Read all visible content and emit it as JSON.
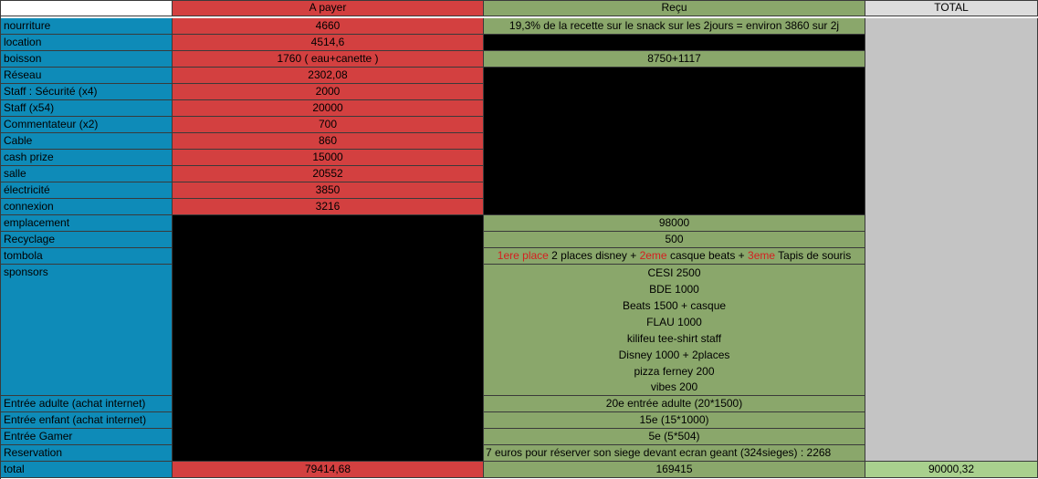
{
  "headers": {
    "blank": "",
    "pay": "A payer",
    "received": "Reçu",
    "total": "TOTAL"
  },
  "rows": [
    {
      "label": "nourriture",
      "pay": "4660",
      "received": "19,3% de la recette sur le snack sur les 2jours = environ 3860 sur 2j"
    },
    {
      "label": "location",
      "pay": "4514,6"
    },
    {
      "label": "boisson",
      "pay": "1760 ( eau+canette )",
      "received": "8750+1117"
    },
    {
      "label": "Réseau",
      "pay": "2302,08"
    },
    {
      "label": "Staff : Sécurité (x4)",
      "pay": "2000"
    },
    {
      "label": "Staff (x54)",
      "pay": "20000"
    },
    {
      "label": "Commentateur (x2)",
      "pay": "700"
    },
    {
      "label": "Cable",
      "pay": "860"
    },
    {
      "label": "cash prize",
      "pay": "15000"
    },
    {
      "label": "salle",
      "pay": "20552"
    },
    {
      "label": "électricité",
      "pay": "3850"
    },
    {
      "label": "connexion",
      "pay": "3216"
    },
    {
      "label": "emplacement",
      "received": "98000"
    },
    {
      "label": "Recyclage",
      "received": "500"
    },
    {
      "label": "tombola",
      "received_parts": {
        "p1_red": "1ere place",
        "p1": " 2 places disney + ",
        "p2_red": "2eme",
        "p2": " casque beats  + ",
        "p3_red": "3eme",
        "p3": " Tapis de souris"
      }
    },
    {
      "label": "sponsors",
      "sponsor_lines": [
        "CESI 2500",
        "BDE 1000",
        "Beats 1500 + casque",
        "FLAU 1000",
        "kilifeu tee-shirt staff",
        "Disney 1000 + 2places",
        "pizza ferney 200",
        "vibes 200"
      ]
    },
    {
      "label": "Entrée adulte (achat internet)",
      "received": "20e entrée adulte (20*1500)"
    },
    {
      "label": "Entrée enfant  (achat internet)",
      "received": "15e  (15*1000)"
    },
    {
      "label": "Entrée Gamer",
      "received": "5e (5*504)"
    },
    {
      "label": "Reservation",
      "received": "7 euros pour réserver son siege devant ecran geant (324sieges) : 2268"
    }
  ],
  "total_row": {
    "label": "total",
    "pay": "79414,68",
    "received": "169415",
    "total": "90000,32"
  },
  "colors": {
    "label": "#0e8bb8",
    "pay": "#d34040",
    "received": "#8aa76b",
    "black": "#000000",
    "total_gray": "#c4c4c4",
    "total_green": "#a9d08e",
    "highlight_red": "#d42020"
  }
}
